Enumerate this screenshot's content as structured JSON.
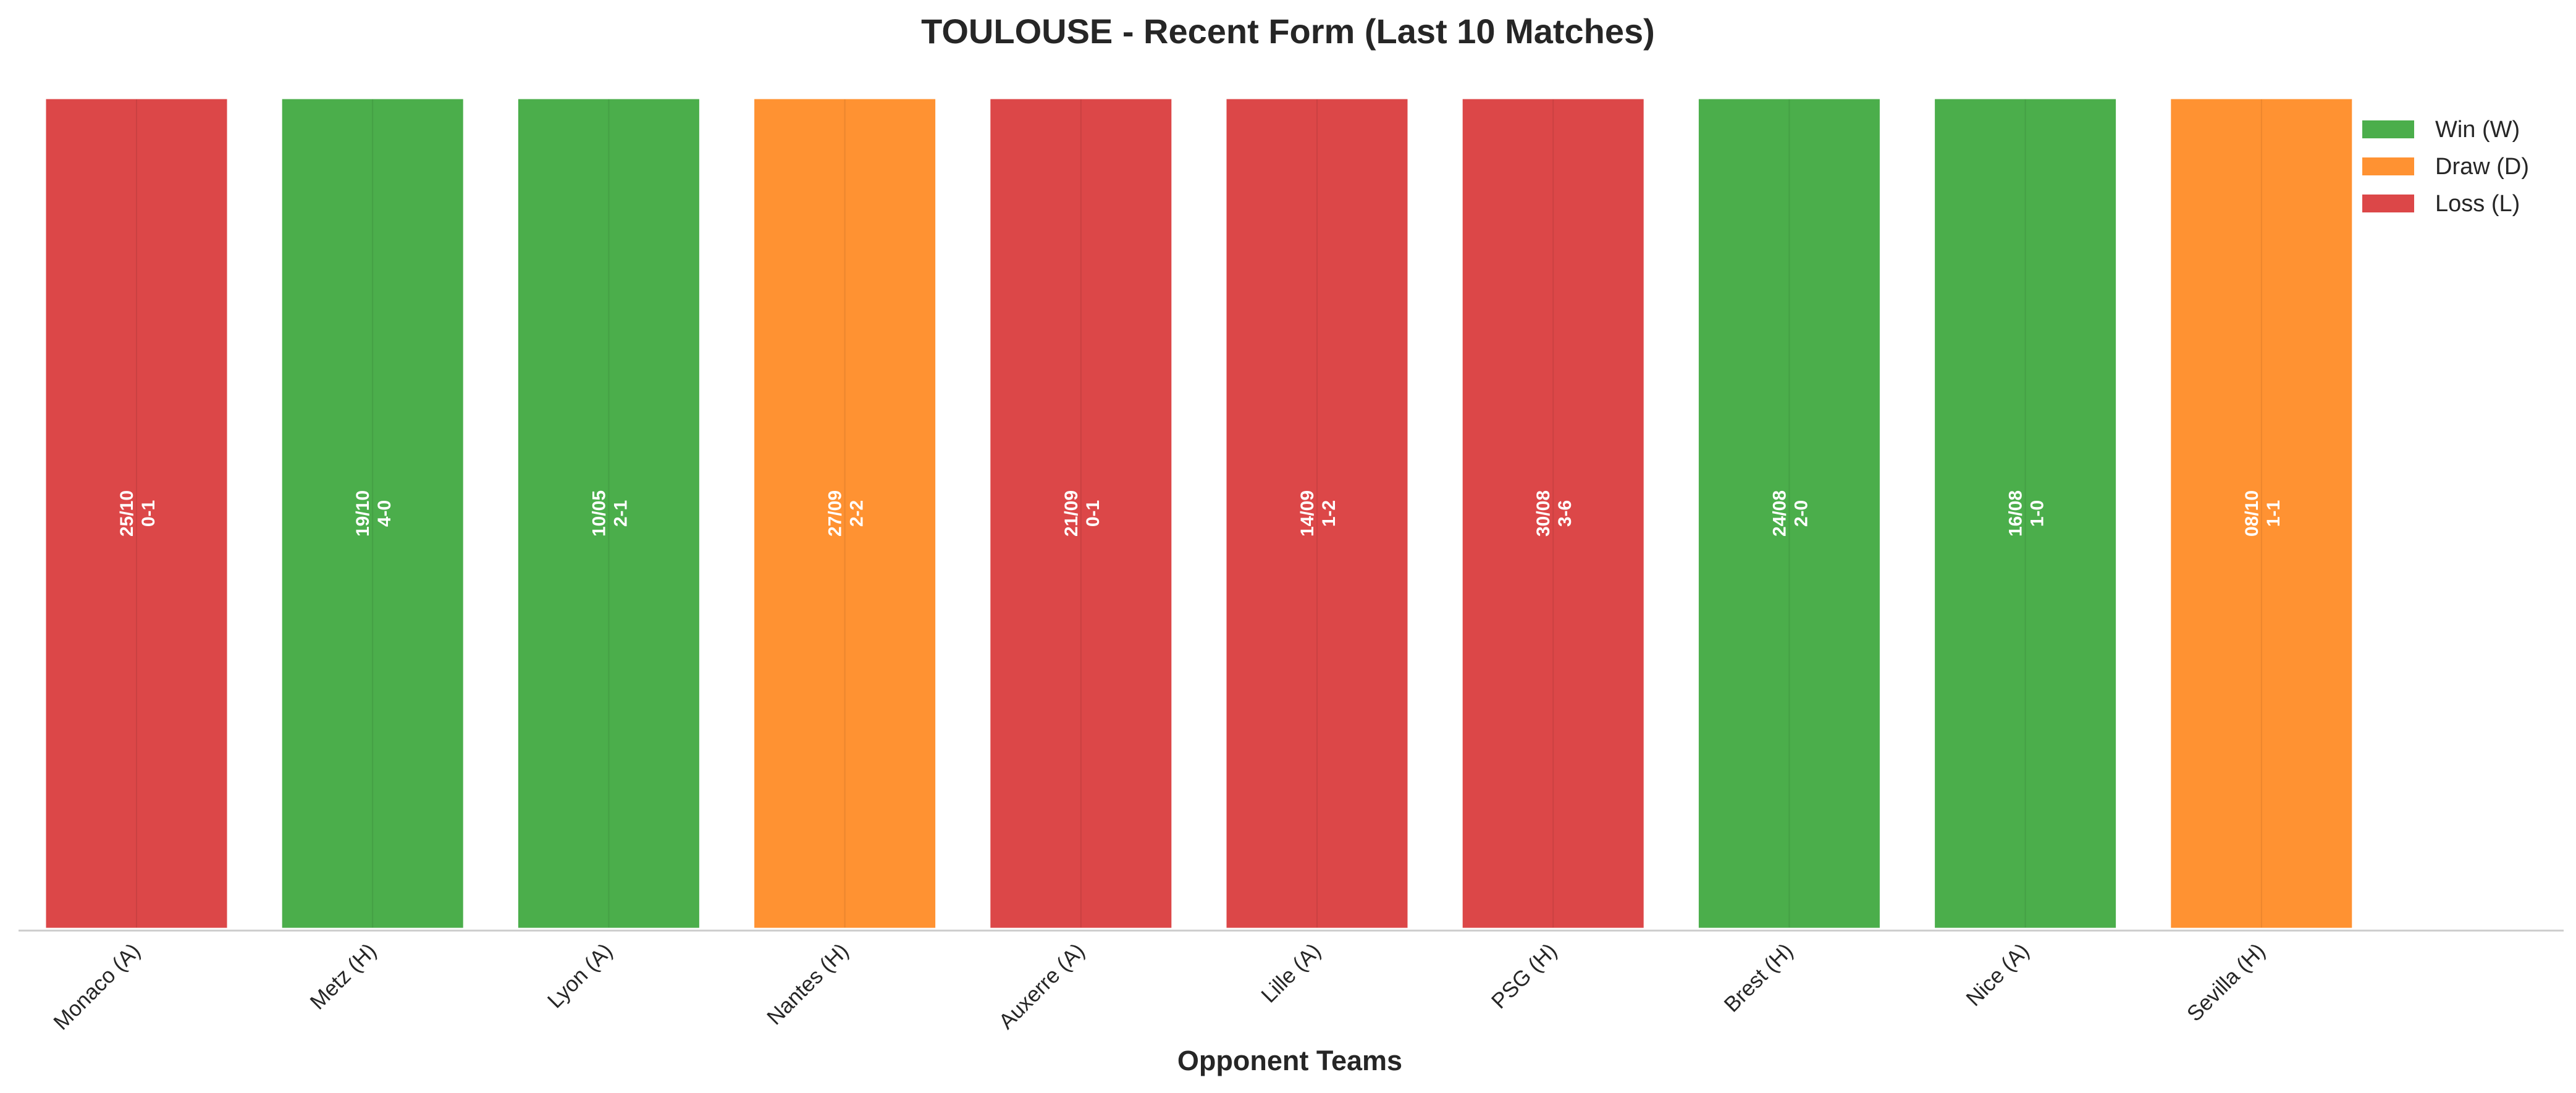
{
  "chart_data": {
    "type": "bar",
    "title": "TOULOUSE - Recent Form (Last 10 Matches)",
    "xlabel": "Opponent Teams",
    "ylabel": "",
    "grid": false,
    "legend_position": "top-right",
    "categories": [
      "Monaco (A)",
      "Metz (H)",
      "Lyon (A)",
      "Nantes (H)",
      "Auxerre (A)",
      "Lille (A)",
      "PSG (H)",
      "Brest (H)",
      "Nice (A)",
      "Sevilla (H)"
    ],
    "values": [
      1,
      1,
      1,
      1,
      1,
      1,
      1,
      1,
      1,
      1
    ],
    "results": [
      "L",
      "W",
      "W",
      "D",
      "L",
      "L",
      "L",
      "W",
      "W",
      "D"
    ],
    "dates": [
      "25/10",
      "19/10",
      "10/05",
      "27/09",
      "21/09",
      "14/09",
      "30/08",
      "24/08",
      "16/08",
      "08/10"
    ],
    "scores": [
      "0-1",
      "4-0",
      "2-1",
      "2-2",
      "0-1",
      "1-2",
      "3-6",
      "2-0",
      "1-0",
      "1-1"
    ],
    "ylim": [
      0,
      1
    ],
    "legend": [
      {
        "key": "W",
        "label": "Win (W)",
        "color": "#2ca02c"
      },
      {
        "key": "D",
        "label": "Draw (D)",
        "color": "#ff7f0e"
      },
      {
        "key": "L",
        "label": "Loss (L)",
        "color": "#d62728"
      }
    ]
  }
}
